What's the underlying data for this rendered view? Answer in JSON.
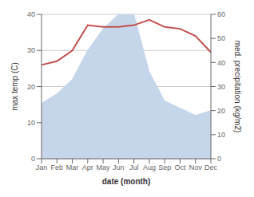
{
  "chart_data": {
    "type": "line",
    "x_label": "date (month)",
    "y_label": "max temp (C)",
    "y2_label": "med. precipitation (kg/m2)",
    "categories": [
      "Jan",
      "Feb",
      "Mar",
      "Apr",
      "May",
      "Jun",
      "Jul",
      "Aug",
      "Sep",
      "Oct",
      "Nov",
      "Dec"
    ],
    "series": [
      {
        "type": "area",
        "color": "#c5d5ea",
        "axis": "y2",
        "values": [
          23,
          27,
          33,
          45,
          54,
          60,
          60,
          36,
          24,
          21,
          18,
          20
        ]
      },
      {
        "type": "line",
        "color": "#c0504d",
        "values": [
          26,
          27,
          30,
          37,
          36.5,
          36.5,
          37,
          38.5,
          36.5,
          36,
          34,
          29.5
        ]
      }
    ],
    "ylim": [
      0,
      40
    ],
    "yticks": [
      0,
      10,
      20,
      30,
      40
    ],
    "y2lim": [
      0,
      60
    ],
    "y2ticks": [
      0,
      10,
      20,
      30,
      40,
      50,
      60
    ],
    "grid": true
  }
}
